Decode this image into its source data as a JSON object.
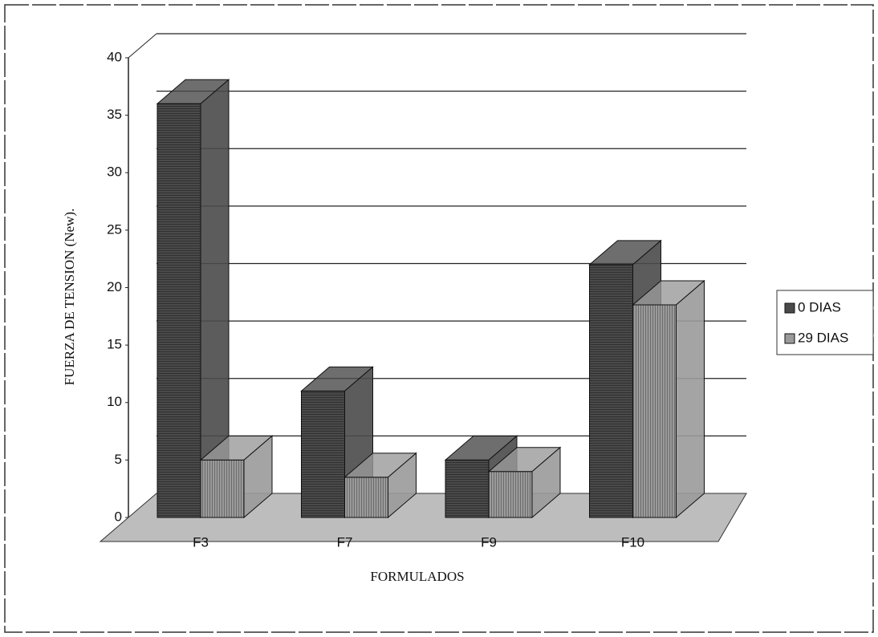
{
  "chart_data": {
    "type": "bar3d",
    "x_label": "FORMULADOS",
    "y_label": "FUERZA DE TENSION (New).",
    "categories": [
      "F3",
      "F7",
      "F9",
      "F10"
    ],
    "series": [
      {
        "name": "0 DIAS",
        "color": "#4a4a4a",
        "values": [
          36,
          11,
          5,
          22
        ]
      },
      {
        "name": "29 DIAS",
        "color": "#9a9a9a",
        "values": [
          5,
          3.5,
          4,
          18.5
        ]
      }
    ],
    "ylim": [
      0,
      40
    ],
    "yticks": [
      0,
      5,
      10,
      15,
      20,
      25,
      30,
      35,
      40
    ],
    "grid": true,
    "legend": "right"
  }
}
